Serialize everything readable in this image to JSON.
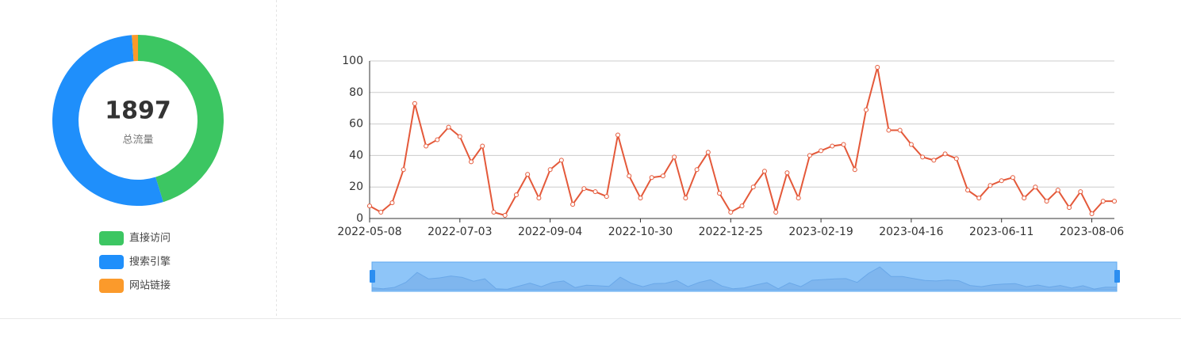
{
  "chart_data": [
    {
      "type": "pie",
      "center_value": 1897,
      "center_label": "总流量",
      "categories": [
        "直接访问",
        "搜索引擎",
        "网站链接"
      ],
      "values": [
        858,
        1017,
        22
      ],
      "colors": [
        "#3cc662",
        "#1f8ffb",
        "#fb9a2b"
      ]
    },
    {
      "type": "line",
      "categories": [
        "2022-05-08",
        null,
        null,
        null,
        null,
        null,
        null,
        null,
        "2022-07-03",
        null,
        null,
        null,
        null,
        null,
        null,
        null,
        "2022-09-04",
        null,
        null,
        null,
        null,
        null,
        null,
        null,
        "2022-10-30",
        null,
        null,
        null,
        null,
        null,
        null,
        null,
        "2022-12-25",
        null,
        null,
        null,
        null,
        null,
        null,
        null,
        "2023-02-19",
        null,
        null,
        null,
        null,
        null,
        null,
        null,
        "2023-04-16",
        null,
        null,
        null,
        null,
        null,
        null,
        null,
        "2023-06-11",
        null,
        null,
        null,
        null,
        null,
        null,
        null,
        "2023-08-06",
        null,
        null
      ],
      "series": [
        {
          "color": "#e4593a",
          "values": [
            8,
            4,
            10,
            31,
            73,
            46,
            50,
            58,
            52,
            36,
            46,
            4,
            2,
            15,
            28,
            13,
            31,
            37,
            9,
            19,
            17,
            14,
            53,
            27,
            13,
            26,
            27,
            39,
            13,
            31,
            42,
            16,
            4,
            8,
            20,
            30,
            4,
            29,
            13,
            40,
            43,
            46,
            47,
            31,
            69,
            96,
            56,
            56,
            47,
            39,
            37,
            41,
            38,
            18,
            13,
            21,
            24,
            26,
            13,
            20,
            11,
            18,
            7,
            17,
            3,
            11,
            11
          ]
        }
      ],
      "ylim": [
        0,
        100
      ],
      "yticks": [
        0,
        20,
        40,
        60,
        80,
        100
      ],
      "grid": true
    }
  ]
}
